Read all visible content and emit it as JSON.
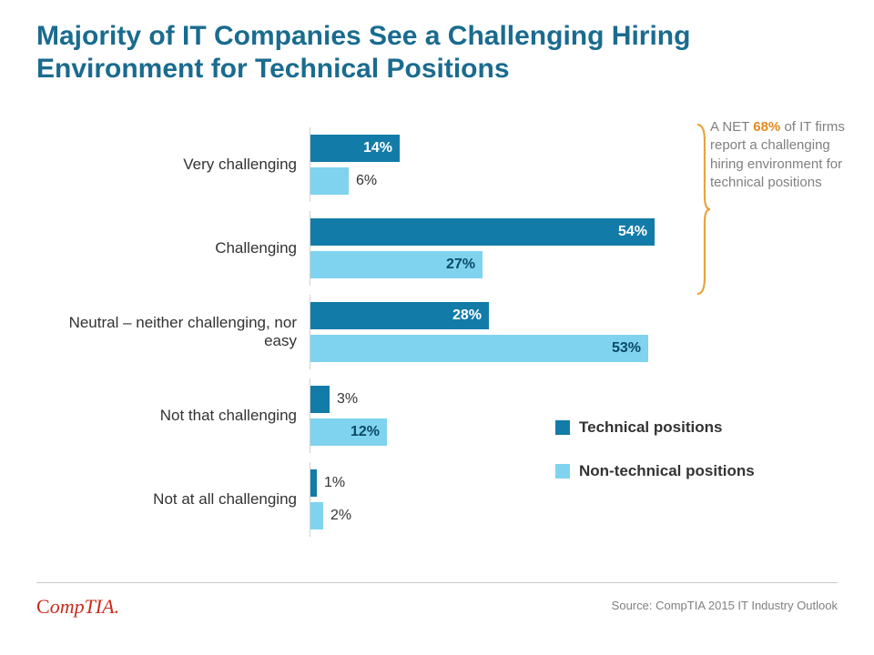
{
  "title": "Majority of IT Companies See a Challenging Hiring Environment for Technical Positions",
  "chart": {
    "type": "horizontal-grouped-bar",
    "xmax": 60,
    "series": [
      {
        "name": "Technical positions",
        "color": "#137ba8"
      },
      {
        "name": "Non-technical positions",
        "color": "#7fd3ef"
      }
    ],
    "categories": [
      {
        "label": "Very challenging",
        "vals": [
          14,
          6
        ],
        "inside": [
          true,
          false
        ]
      },
      {
        "label": "Challenging",
        "vals": [
          54,
          27
        ],
        "inside": [
          true,
          true
        ]
      },
      {
        "label": "Neutral – neither challenging, nor easy",
        "vals": [
          28,
          53
        ],
        "inside": [
          true,
          true
        ]
      },
      {
        "label": "Not that challenging",
        "vals": [
          3,
          12
        ],
        "inside": [
          false,
          true
        ]
      },
      {
        "label": "Not at all challenging",
        "vals": [
          1,
          2
        ],
        "inside": [
          false,
          false
        ]
      }
    ],
    "label_fontsize": 17,
    "value_fontsize": 16,
    "axis_color": "#d0d0d0"
  },
  "callout": {
    "pre": "A NET ",
    "highlight": "68%",
    "post": " of IT firms report a challenging hiring environment for technical positions",
    "brace_color": "#e8a33d",
    "highlight_color": "#e08a1e"
  },
  "legend": {
    "items": [
      {
        "swatch": "#137ba8",
        "label": "Technical positions"
      },
      {
        "swatch": "#7fd3ef",
        "label": "Non-technical positions"
      }
    ]
  },
  "logo_text": "CompTIA.",
  "source": "Source: CompTIA 2015 IT Industry Outlook",
  "colors": {
    "title": "#1a6b8f",
    "background": "#ffffff",
    "text": "#333333",
    "muted": "#808080"
  }
}
